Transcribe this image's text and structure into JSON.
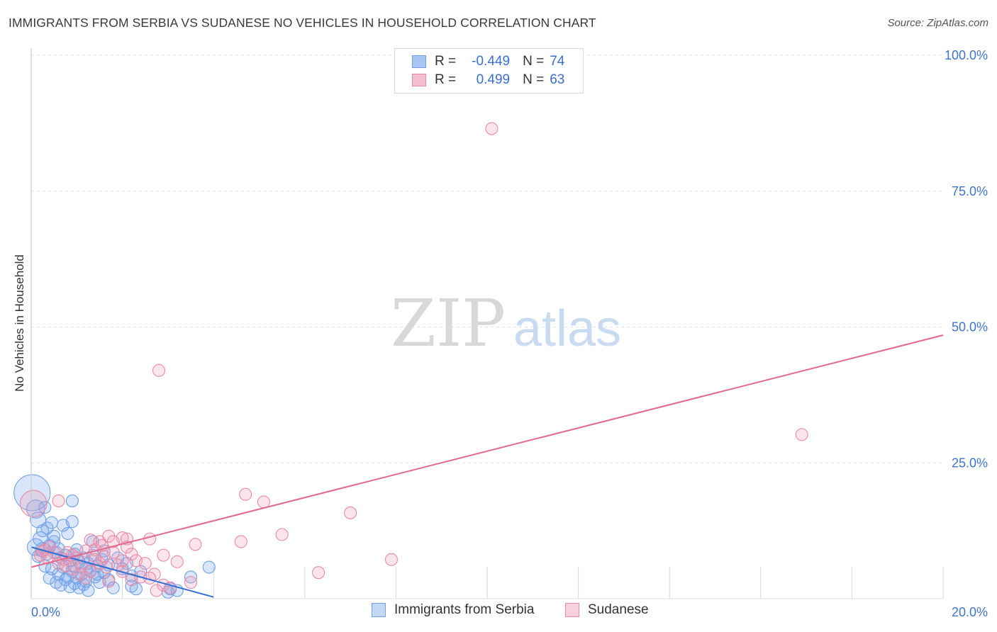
{
  "title": "IMMIGRANTS FROM SERBIA VS SUDANESE NO VEHICLES IN HOUSEHOLD CORRELATION CHART",
  "source": "Source: ZipAtlas.com",
  "watermark": {
    "zip": "ZIP",
    "atlas": "atlas"
  },
  "legend": {
    "r_label": "R =",
    "n_label": "N =",
    "rows": [
      {
        "name": "Immigrants from Serbia",
        "r": "-0.449",
        "n": "74",
        "color": "#6fa0e8",
        "fill": "#a9c6f3"
      },
      {
        "name": "Sudanese",
        "r": "0.499",
        "n": "63",
        "color": "#e88aa6",
        "fill": "#f6bfd0"
      }
    ]
  },
  "chart_data": {
    "type": "scatter",
    "title": "IMMIGRANTS FROM SERBIA VS SUDANESE NO VEHICLES IN HOUSEHOLD CORRELATION CHART",
    "xlabel": "",
    "ylabel": "No Vehicles in Household",
    "xlim": [
      0,
      20
    ],
    "ylim": [
      0,
      100
    ],
    "x_tick_labels": [
      "0.0%",
      "20.0%"
    ],
    "y_tick_labels": [
      "100.0%",
      "75.0%",
      "50.0%",
      "25.0%"
    ],
    "y_ticks": [
      100,
      75,
      50,
      25
    ],
    "legend_position": "top-center",
    "series": [
      {
        "name": "Immigrants from Serbia",
        "color": "#6fa0e8",
        "trend": {
          "x": [
            0,
            4.0
          ],
          "y": [
            9.5,
            0.3
          ],
          "color": "#2f6fd6"
        },
        "points": [
          [
            0.02,
            19.5,
            3
          ],
          [
            0.1,
            16.5,
            1.5
          ],
          [
            0.15,
            14.5,
            1.3
          ],
          [
            0.3,
            16.8,
            1
          ],
          [
            0.45,
            14.0,
            1
          ],
          [
            0.9,
            18.0,
            1
          ],
          [
            0.2,
            11.0,
            1.2
          ],
          [
            0.35,
            13.0,
            1
          ],
          [
            0.5,
            10.5,
            1
          ],
          [
            0.7,
            13.5,
            1
          ],
          [
            0.8,
            12.0,
            1
          ],
          [
            0.9,
            14.2,
            1
          ],
          [
            0.1,
            9.5,
            1.4
          ],
          [
            0.25,
            9.0,
            1.2
          ],
          [
            0.4,
            9.8,
            1
          ],
          [
            0.55,
            8.5,
            1
          ],
          [
            0.65,
            7.5,
            1
          ],
          [
            0.75,
            8.0,
            1
          ],
          [
            0.85,
            7.0,
            1
          ],
          [
            0.95,
            8.2,
            1
          ],
          [
            1.05,
            6.8,
            1
          ],
          [
            1.15,
            7.5,
            1
          ],
          [
            1.25,
            6.5,
            1
          ],
          [
            1.35,
            8.0,
            1
          ],
          [
            1.45,
            6.0,
            1
          ],
          [
            1.55,
            7.2,
            1
          ],
          [
            0.3,
            6.0,
            1
          ],
          [
            0.45,
            5.5,
            1
          ],
          [
            0.6,
            4.5,
            1
          ],
          [
            0.7,
            5.8,
            1
          ],
          [
            0.8,
            4.0,
            1
          ],
          [
            0.9,
            5.0,
            1
          ],
          [
            1.0,
            3.8,
            1
          ],
          [
            1.1,
            4.5,
            1
          ],
          [
            1.2,
            3.2,
            1
          ],
          [
            1.3,
            5.2,
            1
          ],
          [
            1.4,
            4.0,
            1
          ],
          [
            1.5,
            3.0,
            1
          ],
          [
            1.6,
            4.8,
            1
          ],
          [
            1.7,
            3.5,
            1
          ],
          [
            0.55,
            3.0,
            1
          ],
          [
            0.65,
            2.5,
            1
          ],
          [
            0.75,
            3.5,
            1
          ],
          [
            0.85,
            2.2,
            1
          ],
          [
            0.95,
            2.8,
            1
          ],
          [
            1.05,
            2.0,
            1
          ],
          [
            1.15,
            2.6,
            1
          ],
          [
            1.25,
            1.5,
            1
          ],
          [
            1.8,
            2.0,
            1
          ],
          [
            2.2,
            2.3,
            1
          ],
          [
            2.3,
            1.8,
            1
          ],
          [
            2.0,
            5.5,
            1
          ],
          [
            2.1,
            6.5,
            1
          ],
          [
            1.9,
            7.5,
            1
          ],
          [
            2.4,
            5.0,
            1
          ],
          [
            3.0,
            1.2,
            1
          ],
          [
            3.2,
            1.5,
            1
          ],
          [
            3.5,
            4.0,
            1
          ],
          [
            3.9,
            5.8,
            1
          ],
          [
            1.35,
            10.5,
            1
          ],
          [
            1.0,
            9.0,
            1
          ],
          [
            0.15,
            7.8,
            1
          ],
          [
            0.35,
            8.2,
            1
          ],
          [
            0.6,
            9.2,
            1
          ],
          [
            1.6,
            8.8,
            1
          ],
          [
            1.7,
            6.2,
            1
          ],
          [
            0.5,
            11.5,
            1
          ],
          [
            0.25,
            12.5,
            1
          ],
          [
            1.2,
            5.5,
            1
          ],
          [
            0.95,
            6.0,
            1
          ],
          [
            1.45,
            4.5,
            1
          ],
          [
            2.2,
            4.2,
            1
          ],
          [
            0.4,
            3.8,
            1
          ],
          [
            3.05,
            1.8,
            1
          ]
        ]
      },
      {
        "name": "Sudanese",
        "color": "#e88aa6",
        "trend": {
          "x": [
            0,
            20
          ],
          "y": [
            5.8,
            48.5
          ],
          "color": "#e26890"
        },
        "points": [
          [
            0.05,
            17.5,
            2.2
          ],
          [
            0.6,
            18.0,
            1
          ],
          [
            10.1,
            86.5,
            1
          ],
          [
            2.8,
            42.0,
            1
          ],
          [
            16.9,
            30.2,
            1
          ],
          [
            4.7,
            19.2,
            1
          ],
          [
            5.1,
            17.8,
            1
          ],
          [
            7.0,
            15.8,
            1
          ],
          [
            5.5,
            11.8,
            1
          ],
          [
            4.6,
            10.5,
            1
          ],
          [
            3.6,
            10.0,
            1
          ],
          [
            6.3,
            4.8,
            1
          ],
          [
            7.9,
            7.2,
            1
          ],
          [
            2.6,
            11.0,
            1
          ],
          [
            2.0,
            11.2,
            1
          ],
          [
            2.1,
            9.5,
            1
          ],
          [
            1.7,
            11.5,
            1
          ],
          [
            1.5,
            10.5,
            1
          ],
          [
            1.3,
            10.8,
            1
          ],
          [
            1.4,
            9.0,
            1
          ],
          [
            1.8,
            8.5,
            1
          ],
          [
            2.2,
            8.2,
            1
          ],
          [
            2.3,
            7.0,
            1
          ],
          [
            2.5,
            6.5,
            1
          ],
          [
            2.9,
            8.0,
            1
          ],
          [
            3.2,
            6.8,
            1
          ],
          [
            3.5,
            3.0,
            1
          ],
          [
            2.7,
            4.5,
            1
          ],
          [
            2.6,
            3.8,
            1
          ],
          [
            2.9,
            2.5,
            1
          ],
          [
            2.2,
            3.5,
            1
          ],
          [
            1.7,
            3.2,
            1
          ],
          [
            1.2,
            3.8,
            1
          ],
          [
            0.9,
            5.5,
            1
          ],
          [
            0.7,
            7.2,
            1
          ],
          [
            0.5,
            8.5,
            1
          ],
          [
            0.3,
            9.0,
            1
          ],
          [
            0.2,
            8.0,
            1
          ],
          [
            0.8,
            8.5,
            1
          ],
          [
            1.0,
            7.5,
            1
          ],
          [
            1.1,
            6.0,
            1
          ],
          [
            1.3,
            5.0,
            1
          ],
          [
            1.5,
            6.5,
            1
          ],
          [
            1.6,
            7.8,
            1
          ],
          [
            1.9,
            6.2,
            1
          ],
          [
            2.0,
            5.0,
            1
          ],
          [
            2.4,
            4.0,
            1
          ],
          [
            0.4,
            9.5,
            1
          ],
          [
            0.6,
            6.5,
            1
          ],
          [
            0.9,
            8.0,
            1
          ],
          [
            1.2,
            8.8,
            1
          ],
          [
            1.4,
            7.2,
            1
          ],
          [
            1.8,
            10.5,
            1
          ],
          [
            2.1,
            11.0,
            1
          ],
          [
            2.0,
            7.0,
            1
          ],
          [
            0.25,
            8.8,
            1
          ],
          [
            0.35,
            7.5,
            1
          ],
          [
            1.05,
            4.5,
            1
          ],
          [
            1.65,
            5.8,
            1
          ],
          [
            2.75,
            1.5,
            1
          ],
          [
            3.05,
            2.0,
            1
          ],
          [
            0.75,
            6.0,
            1
          ],
          [
            1.55,
            9.8,
            1
          ]
        ]
      }
    ]
  }
}
